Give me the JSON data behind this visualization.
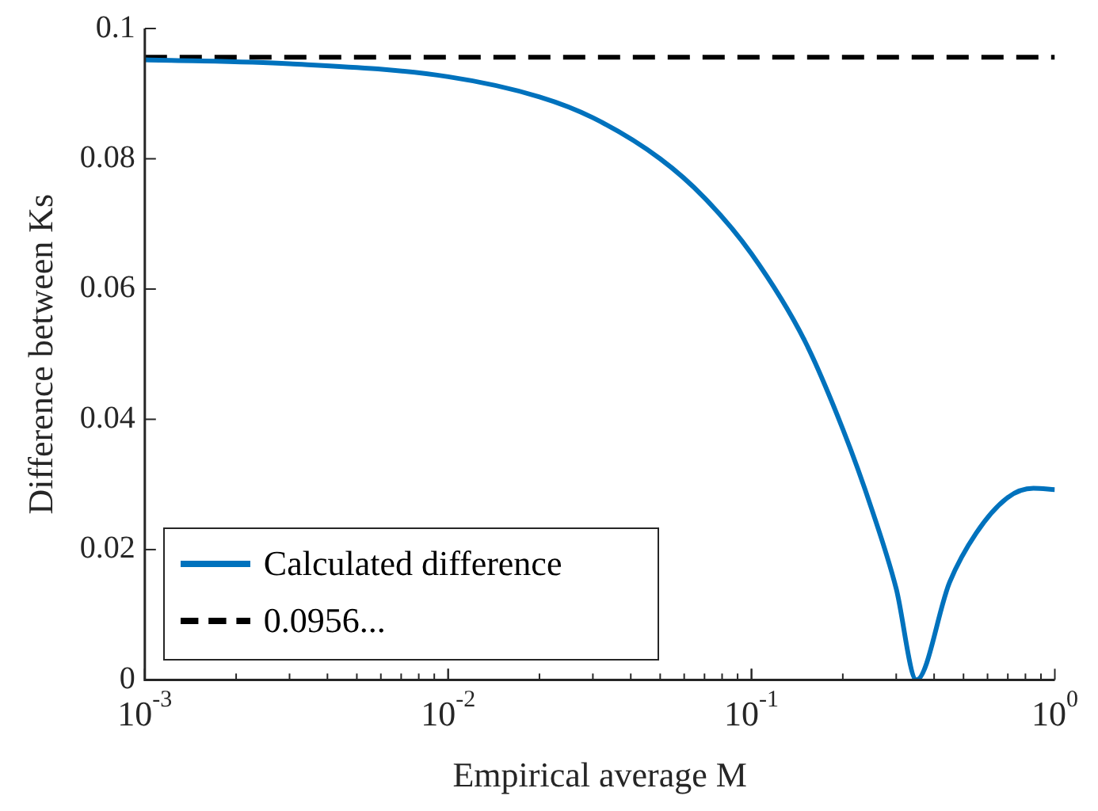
{
  "chart_data": {
    "type": "line",
    "xlabel": "Empirical average M",
    "ylabel": "Difference between Ks",
    "log": "x",
    "xlim": [
      0.001,
      1
    ],
    "ylim": [
      0,
      0.1
    ],
    "xticks": [
      {
        "value": 0.001,
        "label": "10$^{-3}$"
      },
      {
        "value": 0.01,
        "label": "10$^{-2}$"
      },
      {
        "value": 0.1,
        "label": "10$^{-1}$"
      },
      {
        "value": 1,
        "label": "10$^{0}$"
      }
    ],
    "yticks": [
      0,
      0.02,
      0.04,
      0.06,
      0.08,
      0.1
    ],
    "grid": false,
    "legend": "bottom left",
    "marker": "none",
    "series": [
      {
        "name": "Calculated difference",
        "color": "#0072bd",
        "line_style": "solid",
        "x": [
          0.001,
          0.003,
          0.01,
          0.02,
          0.03,
          0.05,
          0.07,
          0.1,
          0.15,
          0.2,
          0.25,
          0.3,
          0.35,
          0.45,
          0.55,
          0.7,
          0.85,
          1
        ],
        "values": [
          0.0952,
          0.0946,
          0.0926,
          0.0895,
          0.0863,
          0.08,
          0.074,
          0.0654,
          0.052,
          0.0385,
          0.026,
          0.014,
          0,
          0.015,
          0.0225,
          0.028,
          0.0294,
          0.0292
        ]
      },
      {
        "name": "0.0956...",
        "color": "#000000",
        "line_style": "dashed",
        "x": [
          0.001,
          1
        ],
        "values": [
          0.0956,
          0.0956
        ]
      }
    ]
  }
}
